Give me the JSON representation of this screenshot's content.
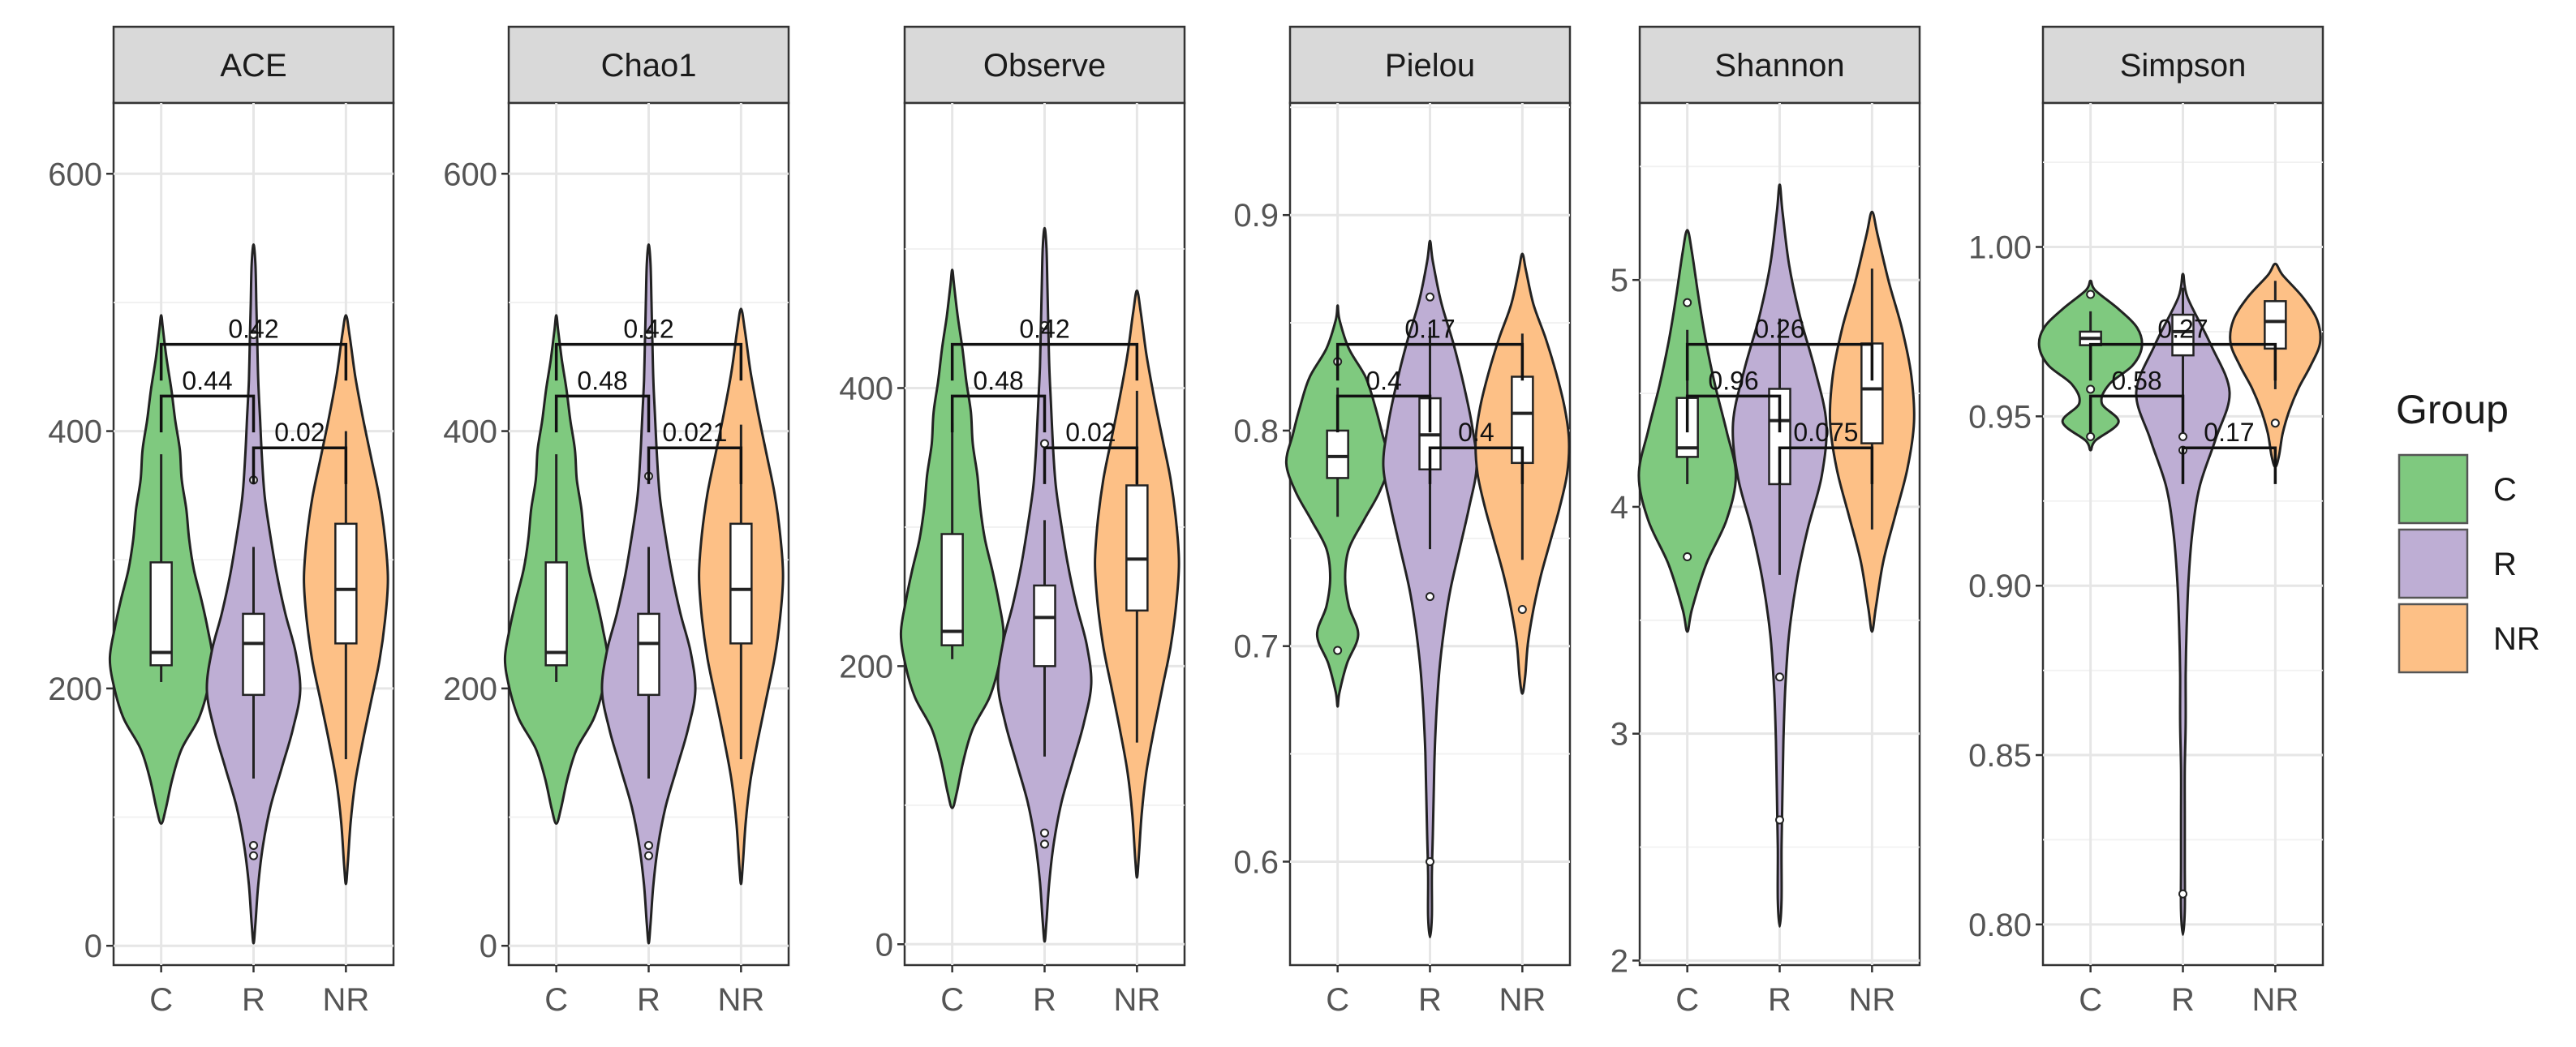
{
  "colors": {
    "C": "#7fc97f",
    "R": "#beaed4",
    "NR": "#fdc086"
  },
  "legend": {
    "title": "Group",
    "entries": [
      "C",
      "R",
      "NR"
    ]
  },
  "chart_data": [
    {
      "type": "violin",
      "title": "ACE",
      "categories": [
        "C",
        "R",
        "NR"
      ],
      "ylim": [
        -15,
        655
      ],
      "yticks": [
        0,
        200,
        400,
        600
      ],
      "grid": true,
      "groups": [
        {
          "name": "C",
          "vmin": 95,
          "vmax": 490,
          "violin_width": [
            0.05,
            0.12,
            0.22,
            0.4,
            0.5,
            0.55,
            0.5,
            0.43,
            0.35,
            0.3,
            0.27,
            0.22,
            0.2,
            0.15,
            0.11,
            0.06,
            0.02
          ],
          "q1": 218,
          "median": 228,
          "q3": 298,
          "whisker_low": 205,
          "whisker_high": 382,
          "outliers": []
        },
        {
          "name": "R",
          "vmin": 2,
          "vmax": 545,
          "violin_width": [
            0.02,
            0.05,
            0.1,
            0.18,
            0.3,
            0.42,
            0.5,
            0.45,
            0.34,
            0.25,
            0.18,
            0.12,
            0.09,
            0.07,
            0.05,
            0.04,
            0.03,
            0.02
          ],
          "q1": 195,
          "median": 235,
          "q3": 258,
          "whisker_low": 130,
          "whisker_high": 310,
          "outliers": [
            70,
            78,
            362,
            475
          ]
        },
        {
          "name": "NR",
          "vmin": 48,
          "vmax": 490,
          "violin_width": [
            0.02,
            0.05,
            0.1,
            0.18,
            0.27,
            0.36,
            0.42,
            0.45,
            0.42,
            0.36,
            0.27,
            0.18,
            0.1,
            0.04
          ],
          "q1": 235,
          "median": 277,
          "q3": 328,
          "whisker_low": 145,
          "whisker_high": 400,
          "outliers": []
        }
      ],
      "comparisons": [
        {
          "groups": [
            "C",
            "R"
          ],
          "p": "0.44",
          "level": 1
        },
        {
          "groups": [
            "R",
            "NR"
          ],
          "p": "0.02",
          "level": 0
        },
        {
          "groups": [
            "C",
            "NR"
          ],
          "p": "0.42",
          "level": 2
        }
      ]
    },
    {
      "type": "violin",
      "title": "Chao1",
      "categories": [
        "C",
        "R",
        "NR"
      ],
      "ylim": [
        -15,
        655
      ],
      "yticks": [
        0,
        200,
        400,
        600
      ],
      "grid": true,
      "groups": [
        {
          "name": "C",
          "vmin": 95,
          "vmax": 490,
          "violin_width": [
            0.05,
            0.12,
            0.22,
            0.4,
            0.5,
            0.55,
            0.5,
            0.43,
            0.35,
            0.3,
            0.27,
            0.22,
            0.2,
            0.15,
            0.11,
            0.06,
            0.02
          ],
          "q1": 218,
          "median": 228,
          "q3": 298,
          "whisker_low": 205,
          "whisker_high": 382,
          "outliers": []
        },
        {
          "name": "R",
          "vmin": 2,
          "vmax": 545,
          "violin_width": [
            0.02,
            0.05,
            0.1,
            0.18,
            0.3,
            0.42,
            0.5,
            0.45,
            0.34,
            0.25,
            0.18,
            0.12,
            0.09,
            0.07,
            0.05,
            0.04,
            0.03,
            0.02
          ],
          "q1": 195,
          "median": 235,
          "q3": 258,
          "whisker_low": 130,
          "whisker_high": 310,
          "outliers": [
            70,
            78,
            365,
            475
          ]
        },
        {
          "name": "NR",
          "vmin": 48,
          "vmax": 495,
          "violin_width": [
            0.02,
            0.05,
            0.1,
            0.18,
            0.27,
            0.36,
            0.42,
            0.45,
            0.42,
            0.36,
            0.27,
            0.18,
            0.1,
            0.04
          ],
          "q1": 235,
          "median": 277,
          "q3": 328,
          "whisker_low": 145,
          "whisker_high": 405,
          "outliers": []
        }
      ],
      "comparisons": [
        {
          "groups": [
            "C",
            "R"
          ],
          "p": "0.48",
          "level": 1
        },
        {
          "groups": [
            "R",
            "NR"
          ],
          "p": "0.021",
          "level": 0
        },
        {
          "groups": [
            "C",
            "NR"
          ],
          "p": "0.42",
          "level": 2
        }
      ]
    },
    {
      "type": "violin",
      "title": "Observe",
      "categories": [
        "C",
        "R",
        "NR"
      ],
      "ylim": [
        -15,
        605
      ],
      "yticks": [
        0,
        200,
        400
      ],
      "grid": true,
      "groups": [
        {
          "name": "C",
          "vmin": 98,
          "vmax": 485,
          "violin_width": [
            0.05,
            0.12,
            0.22,
            0.4,
            0.5,
            0.55,
            0.5,
            0.43,
            0.35,
            0.3,
            0.27,
            0.22,
            0.2,
            0.15,
            0.11,
            0.06,
            0.02
          ],
          "q1": 215,
          "median": 225,
          "q3": 295,
          "whisker_low": 205,
          "whisker_high": 375,
          "outliers": []
        },
        {
          "name": "R",
          "vmin": 2,
          "vmax": 515,
          "violin_width": [
            0.02,
            0.05,
            0.1,
            0.18,
            0.3,
            0.42,
            0.5,
            0.45,
            0.34,
            0.25,
            0.18,
            0.12,
            0.09,
            0.07,
            0.05,
            0.04,
            0.03,
            0.02
          ],
          "q1": 200,
          "median": 235,
          "q3": 258,
          "whisker_low": 135,
          "whisker_high": 305,
          "outliers": [
            72,
            80,
            360,
            445
          ]
        },
        {
          "name": "NR",
          "vmin": 48,
          "vmax": 470,
          "violin_width": [
            0.02,
            0.05,
            0.1,
            0.18,
            0.27,
            0.36,
            0.42,
            0.45,
            0.42,
            0.36,
            0.27,
            0.18,
            0.1,
            0.04
          ],
          "q1": 240,
          "median": 277,
          "q3": 330,
          "whisker_low": 145,
          "whisker_high": 398,
          "outliers": []
        }
      ],
      "comparisons": [
        {
          "groups": [
            "C",
            "R"
          ],
          "p": "0.48",
          "level": 1
        },
        {
          "groups": [
            "R",
            "NR"
          ],
          "p": "0.02",
          "level": 0
        },
        {
          "groups": [
            "C",
            "NR"
          ],
          "p": "0.42",
          "level": 2
        }
      ]
    },
    {
      "type": "violin",
      "title": "Pielou",
      "categories": [
        "C",
        "R",
        "NR"
      ],
      "ylim": [
        0.552,
        0.952
      ],
      "yticks": [
        0.6,
        0.7,
        0.8,
        0.9
      ],
      "grid": true,
      "groups": [
        {
          "name": "C",
          "vmin": 0.672,
          "vmax": 0.858,
          "violin_width": [
            0.02,
            0.1,
            0.22,
            0.12,
            0.08,
            0.12,
            0.28,
            0.45,
            0.55,
            0.48,
            0.4,
            0.3,
            0.12,
            0.02
          ],
          "q1": 0.778,
          "median": 0.788,
          "q3": 0.8,
          "whisker_low": 0.76,
          "whisker_high": 0.82,
          "outliers": [
            0.698,
            0.832
          ]
        },
        {
          "name": "R",
          "vmin": 0.565,
          "vmax": 0.888,
          "violin_width": [
            0.02,
            0.02,
            0.03,
            0.04,
            0.05,
            0.07,
            0.1,
            0.15,
            0.22,
            0.32,
            0.42,
            0.5,
            0.45,
            0.36,
            0.25,
            0.12,
            0.03
          ],
          "q1": 0.782,
          "median": 0.798,
          "q3": 0.815,
          "whisker_low": 0.745,
          "whisker_high": 0.848,
          "outliers": [
            0.6,
            0.723,
            0.862
          ]
        },
        {
          "name": "NR",
          "vmin": 0.678,
          "vmax": 0.882,
          "violin_width": [
            0.03,
            0.06,
            0.12,
            0.2,
            0.3,
            0.4,
            0.48,
            0.5,
            0.45,
            0.36,
            0.25,
            0.12,
            0.04
          ],
          "q1": 0.785,
          "median": 0.808,
          "q3": 0.825,
          "whisker_low": 0.74,
          "whisker_high": 0.845,
          "outliers": [
            0.717
          ]
        }
      ],
      "comparisons": [
        {
          "groups": [
            "C",
            "R"
          ],
          "p": "0.4",
          "level": 1
        },
        {
          "groups": [
            "R",
            "NR"
          ],
          "p": "0.4",
          "level": 0
        },
        {
          "groups": [
            "C",
            "NR"
          ],
          "p": "0.17",
          "level": 2
        }
      ]
    },
    {
      "type": "violin",
      "title": "Shannon",
      "categories": [
        "C",
        "R",
        "NR"
      ],
      "ylim": [
        1.98,
        5.78
      ],
      "yticks": [
        2,
        3,
        4,
        5
      ],
      "grid": true,
      "groups": [
        {
          "name": "C",
          "vmin": 3.45,
          "vmax": 5.22,
          "violin_width": [
            0.05,
            0.2,
            0.42,
            0.52,
            0.42,
            0.3,
            0.2,
            0.12,
            0.05
          ],
          "q1": 4.22,
          "median": 4.26,
          "q3": 4.48,
          "whisker_low": 4.1,
          "whisker_high": 4.78,
          "outliers": [
            3.78,
            4.9
          ]
        },
        {
          "name": "R",
          "vmin": 2.15,
          "vmax": 5.42,
          "violin_width": [
            0.02,
            0.02,
            0.03,
            0.04,
            0.06,
            0.1,
            0.18,
            0.3,
            0.45,
            0.5,
            0.38,
            0.22,
            0.1,
            0.03
          ],
          "q1": 4.1,
          "median": 4.38,
          "q3": 4.52,
          "whisker_low": 3.7,
          "whisker_high": 4.83,
          "outliers": [
            2.62,
            3.25
          ]
        },
        {
          "name": "NR",
          "vmin": 3.45,
          "vmax": 5.3,
          "violin_width": [
            0.04,
            0.12,
            0.25,
            0.38,
            0.45,
            0.42,
            0.32,
            0.18,
            0.06
          ],
          "q1": 4.28,
          "median": 4.52,
          "q3": 4.72,
          "whisker_low": 3.9,
          "whisker_high": 5.05,
          "outliers": []
        }
      ],
      "comparisons": [
        {
          "groups": [
            "C",
            "R"
          ],
          "p": "0.96",
          "level": 1
        },
        {
          "groups": [
            "R",
            "NR"
          ],
          "p": "0.075",
          "level": 0
        },
        {
          "groups": [
            "C",
            "NR"
          ],
          "p": "0.26",
          "level": 2
        }
      ]
    },
    {
      "type": "violin",
      "title": "Simpson",
      "categories": [
        "C",
        "R",
        "NR"
      ],
      "ylim": [
        0.788,
        1.0425
      ],
      "yticks": [
        0.8,
        0.85,
        0.9,
        0.95,
        1.0
      ],
      "ytick_labels": [
        "0.80",
        "0.85",
        "0.90",
        "0.95",
        "1.00"
      ],
      "grid": true,
      "groups": [
        {
          "name": "C",
          "vmin": 0.94,
          "vmax": 0.99,
          "violin_width": [
            0.05,
            0.3,
            0.12,
            0.2,
            0.45,
            0.55,
            0.5,
            0.3,
            0.05
          ],
          "q1": 0.971,
          "median": 0.973,
          "q3": 0.975,
          "whisker_low": 0.966,
          "whisker_high": 0.981,
          "outliers": [
            0.944,
            0.958,
            0.986
          ]
        },
        {
          "name": "R",
          "vmin": 0.797,
          "vmax": 0.992,
          "violin_width": [
            0.02,
            0.02,
            0.02,
            0.02,
            0.03,
            0.03,
            0.04,
            0.06,
            0.1,
            0.18,
            0.35,
            0.5,
            0.3,
            0.05
          ],
          "q1": 0.968,
          "median": 0.975,
          "q3": 0.98,
          "whisker_low": 0.955,
          "whisker_high": 0.988,
          "outliers": [
            0.809,
            0.94,
            0.944
          ]
        },
        {
          "name": "NR",
          "vmin": 0.935,
          "vmax": 0.995,
          "violin_width": [
            0.04,
            0.08,
            0.15,
            0.25,
            0.38,
            0.48,
            0.45,
            0.3,
            0.08
          ],
          "q1": 0.97,
          "median": 0.978,
          "q3": 0.984,
          "whisker_low": 0.958,
          "whisker_high": 0.99,
          "outliers": [
            0.948
          ]
        }
      ],
      "comparisons": [
        {
          "groups": [
            "C",
            "R"
          ],
          "p": "0.58",
          "level": 1
        },
        {
          "groups": [
            "R",
            "NR"
          ],
          "p": "0.17",
          "level": 0
        },
        {
          "groups": [
            "C",
            "NR"
          ],
          "p": "0.27",
          "level": 2
        }
      ]
    }
  ]
}
